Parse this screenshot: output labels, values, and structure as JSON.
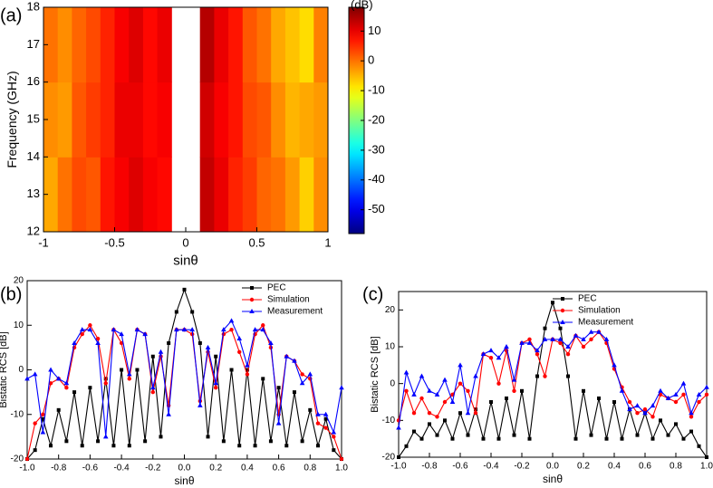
{
  "chart_data": [
    {
      "type": "heatmap",
      "panel": "(a)",
      "xlabel": "sinθ",
      "ylabel": "Frequency (GHz)",
      "colorbar_label": "(dB)",
      "colormap": "jet",
      "xlim": [
        -1,
        1
      ],
      "xticks": [
        -1,
        -0.5,
        0,
        0.5,
        1
      ],
      "ylim": [
        12,
        18
      ],
      "yticks": [
        12,
        13,
        14,
        15,
        16,
        17,
        18
      ],
      "zlim": [
        -58,
        18
      ],
      "zticks": [
        10,
        0,
        -10,
        -20,
        -30,
        -40,
        -50
      ],
      "x": [
        -0.95,
        -0.85,
        -0.75,
        -0.65,
        -0.55,
        -0.45,
        -0.35,
        -0.25,
        -0.15,
        -0.05,
        0.05,
        0.15,
        0.25,
        0.35,
        0.45,
        0.55,
        0.65,
        0.75,
        0.85,
        0.95
      ],
      "y": [
        13,
        15,
        17
      ],
      "values": [
        [
          -4,
          0,
          3,
          2,
          7,
          9,
          11,
          9,
          8,
          null,
          null,
          13,
          10,
          6,
          4,
          1,
          0,
          -3,
          -7,
          -2
        ],
        [
          -2,
          -3,
          2,
          4,
          6,
          10,
          10,
          8,
          9,
          null,
          null,
          12,
          9,
          7,
          3,
          2,
          -2,
          -5,
          -4,
          -3
        ],
        [
          0,
          -2,
          1,
          3,
          6,
          9,
          11,
          8,
          10,
          null,
          null,
          14,
          10,
          7,
          2,
          0,
          -4,
          -6,
          -8,
          -1
        ]
      ]
    },
    {
      "type": "line",
      "panel": "(b)",
      "xlabel": "sinθ",
      "ylabel": "Bistatic RCS [dB]",
      "legend": "upper right",
      "xlim": [
        -1,
        1
      ],
      "xticks": [
        {
          "value": -1,
          "label": "-1.0"
        },
        -0.8,
        -0.6,
        -0.4,
        -0.2,
        {
          "value": 0,
          "label": "0.0"
        },
        0.2,
        0.4,
        0.6,
        0.8,
        {
          "value": 1,
          "label": "1.0"
        }
      ],
      "ylim": [
        -20,
        20
      ],
      "yticks": [
        -20,
        -10,
        0,
        10,
        20
      ],
      "x": [
        -1,
        -0.95,
        -0.9,
        -0.85,
        -0.8,
        -0.75,
        -0.7,
        -0.65,
        -0.6,
        -0.55,
        -0.5,
        -0.45,
        -0.4,
        -0.35,
        -0.3,
        -0.25,
        -0.2,
        -0.15,
        -0.1,
        -0.05,
        0,
        0.05,
        0.1,
        0.15,
        0.2,
        0.25,
        0.3,
        0.35,
        0.4,
        0.45,
        0.5,
        0.55,
        0.6,
        0.65,
        0.7,
        0.75,
        0.8,
        0.85,
        0.9,
        0.95,
        1
      ],
      "series": [
        {
          "name": "PEC",
          "color": "#000000",
          "marker": "square",
          "values": [
            -20,
            -18,
            -11,
            -17,
            -9,
            -16,
            -5,
            -17,
            -4,
            -16,
            -2,
            -17,
            0,
            -17,
            0,
            -16,
            3,
            -15,
            6,
            13,
            18,
            13,
            6,
            -15,
            3,
            -16,
            0,
            -17,
            0,
            -17,
            -2,
            -16,
            -4,
            -17,
            -5,
            -16,
            -9,
            -17,
            -11,
            -18,
            -20
          ]
        },
        {
          "name": "Simulation",
          "color": "#ff0000",
          "marker": "circle",
          "values": [
            -20,
            -12,
            -10,
            -3,
            -2,
            -4,
            5,
            8,
            10,
            7,
            -3,
            9,
            6,
            -2,
            9,
            8,
            -5,
            3,
            -8,
            9,
            9,
            8,
            -7,
            4,
            -4,
            8,
            9,
            4,
            -1,
            8,
            10,
            5,
            -10,
            3,
            2,
            -1,
            -2,
            -12,
            -13,
            -15,
            -20
          ]
        },
        {
          "name": "Measurement",
          "color": "#0000ff",
          "marker": "triangle",
          "values": [
            -2,
            -1,
            -14,
            0,
            -2,
            -3,
            6,
            9,
            9,
            6,
            -15,
            9,
            8,
            -1,
            9,
            8,
            -4,
            4,
            -10,
            9,
            9,
            9,
            -8,
            5,
            -3,
            9,
            11,
            7,
            1,
            9,
            9,
            6,
            -12,
            3,
            2,
            -3,
            -1,
            -10,
            -10,
            -14,
            -4
          ]
        }
      ]
    },
    {
      "type": "line",
      "panel": "(c)",
      "xlabel": "sinθ",
      "ylabel": "Bistatic RCS [dB]",
      "legend": "upper center",
      "xlim": [
        -1,
        1
      ],
      "xticks": [
        {
          "value": -1,
          "label": "-1.0"
        },
        -0.8,
        -0.6,
        -0.4,
        -0.2,
        {
          "value": 0,
          "label": "0.0"
        },
        0.2,
        0.4,
        0.6,
        0.8,
        {
          "value": 1,
          "label": "1.0"
        }
      ],
      "ylim": [
        -20,
        25
      ],
      "yticks": [
        -20,
        -10,
        0,
        10,
        20
      ],
      "x": [
        -1,
        -0.95,
        -0.9,
        -0.85,
        -0.8,
        -0.75,
        -0.7,
        -0.65,
        -0.6,
        -0.55,
        -0.5,
        -0.45,
        -0.4,
        -0.35,
        -0.3,
        -0.25,
        -0.2,
        -0.15,
        -0.1,
        -0.05,
        0,
        0.05,
        0.1,
        0.15,
        0.2,
        0.25,
        0.3,
        0.35,
        0.4,
        0.45,
        0.5,
        0.55,
        0.6,
        0.65,
        0.7,
        0.75,
        0.8,
        0.85,
        0.9,
        0.95,
        1
      ],
      "series": [
        {
          "name": "PEC",
          "color": "#000000",
          "marker": "square",
          "values": [
            -20,
            -17,
            -13,
            -15,
            -11,
            -14,
            -10,
            -15,
            -8,
            -14,
            -7,
            -15,
            -5,
            -15,
            -4,
            -14,
            -2,
            -15,
            2,
            15,
            22,
            15,
            2,
            -15,
            -2,
            -14,
            -4,
            -15,
            -5,
            -15,
            -7,
            -14,
            -8,
            -15,
            -10,
            -14,
            -11,
            -15,
            -13,
            -17,
            -20
          ]
        },
        {
          "name": "Simulation",
          "color": "#ff0000",
          "marker": "circle",
          "values": [
            -10,
            -2,
            -8,
            -4,
            -8,
            -9,
            -5,
            -3,
            0,
            -2,
            -8,
            8,
            7,
            0,
            9,
            -2,
            11,
            12,
            8,
            2,
            12,
            11,
            8,
            13,
            10,
            12,
            14,
            11,
            4,
            -1,
            -5,
            -8,
            -7,
            -9,
            -3,
            -4,
            -5,
            -3,
            -9,
            -5,
            -3
          ]
        },
        {
          "name": "Measurement",
          "color": "#0000ff",
          "marker": "triangle",
          "values": [
            -12,
            3,
            -3,
            2,
            -2,
            -3,
            1,
            -5,
            5,
            -8,
            2,
            8,
            9,
            7,
            10,
            1,
            11,
            11,
            9,
            12,
            12,
            12,
            10,
            13,
            12,
            14,
            14,
            12,
            5,
            -2,
            -7,
            -6,
            -8,
            -6,
            -2,
            -4,
            -3,
            0,
            -8,
            -3,
            -1
          ]
        }
      ]
    }
  ]
}
